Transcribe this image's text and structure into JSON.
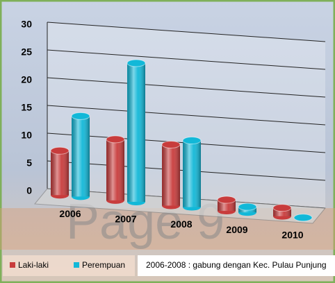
{
  "chart_data": {
    "type": "bar",
    "categories": [
      "2006",
      "2007",
      "2008",
      "2009",
      "2010"
    ],
    "series": [
      {
        "name": "Laki-laki",
        "color": "#c83c3c",
        "values": [
          8,
          11,
          11,
          2,
          1.5
        ]
      },
      {
        "name": "Perempuan",
        "color": "#12b8d8",
        "values": [
          14.5,
          25,
          12,
          1,
          0
        ]
      }
    ],
    "ylim": [
      0,
      30
    ],
    "yticks": [
      0,
      5,
      10,
      15,
      20,
      25,
      30
    ],
    "grid": true,
    "legend": "bottom-left",
    "annotation": "2006-2008  : gabung dengan Kec. Pulau Punjung",
    "watermark": "Page 9"
  }
}
